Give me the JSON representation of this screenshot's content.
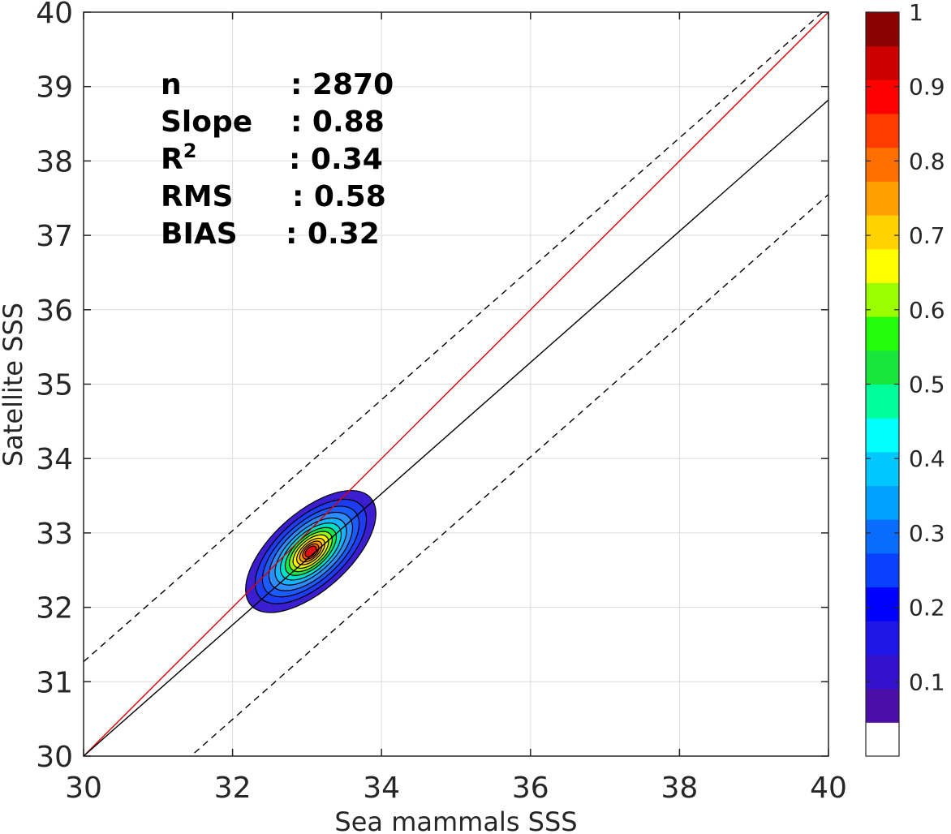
{
  "chart_data": {
    "type": "contour-scatter",
    "xlabel": "Sea mammals SSS",
    "ylabel": "Satellite SSS",
    "xlim": [
      30,
      40
    ],
    "ylim": [
      30,
      40
    ],
    "xticks": [
      "30",
      "32",
      "34",
      "36",
      "38",
      "40"
    ],
    "yticks": [
      "30",
      "31",
      "32",
      "33",
      "34",
      "35",
      "36",
      "37",
      "38",
      "39",
      "40"
    ],
    "grid": true,
    "stats": [
      {
        "label": "n",
        "value": ": 2870"
      },
      {
        "label": "Slope",
        "value": ": 0.88"
      },
      {
        "label": "R",
        "superscript": "2",
        "value": ": 0.34"
      },
      {
        "label": "RMS",
        "value": ": 0.58"
      },
      {
        "label": "BIAS",
        "value": ": 0.32"
      }
    ],
    "lines": {
      "one_to_one": {
        "color": "#dd0000",
        "points": [
          [
            30,
            30
          ],
          [
            40,
            40
          ]
        ]
      },
      "regression": {
        "color": "#000000",
        "slope": 0.88,
        "points": [
          [
            30,
            30
          ],
          [
            40,
            38.82
          ]
        ]
      },
      "upper_bound": {
        "color": "#000000",
        "dashed": true,
        "points": [
          [
            30,
            31.27
          ],
          [
            40,
            40.07
          ]
        ]
      },
      "lower_bound": {
        "color": "#000000",
        "dashed": true,
        "points": [
          [
            30,
            28.73
          ],
          [
            40,
            37.55
          ]
        ]
      }
    },
    "density": {
      "center": [
        33.05,
        32.75
      ],
      "rotation_deg": 42,
      "levels": [
        {
          "level": 0.1,
          "color": "#3a1ed0",
          "rx": 1.08,
          "ry": 0.52
        },
        {
          "level": 0.15,
          "color": "#1f3cf5",
          "rx": 0.92,
          "ry": 0.45
        },
        {
          "level": 0.2,
          "color": "#1a5cff",
          "rx": 0.8,
          "ry": 0.39
        },
        {
          "level": 0.25,
          "color": "#2f8cff",
          "rx": 0.69,
          "ry": 0.34
        },
        {
          "level": 0.3,
          "color": "#16b4ff",
          "rx": 0.59,
          "ry": 0.29
        },
        {
          "level": 0.4,
          "color": "#00e0c8",
          "rx": 0.5,
          "ry": 0.25
        },
        {
          "level": 0.5,
          "color": "#14e94a",
          "rx": 0.42,
          "ry": 0.21
        },
        {
          "level": 0.55,
          "color": "#9cf70a",
          "rx": 0.35,
          "ry": 0.18
        },
        {
          "level": 0.65,
          "color": "#fff200",
          "rx": 0.29,
          "ry": 0.15
        },
        {
          "level": 0.7,
          "color": "#ffcc00",
          "rx": 0.23,
          "ry": 0.12
        },
        {
          "level": 0.75,
          "color": "#ff9a00",
          "rx": 0.18,
          "ry": 0.095
        },
        {
          "level": 0.8,
          "color": "#ff5a00",
          "rx": 0.13,
          "ry": 0.075
        },
        {
          "level": 0.9,
          "color": "#e01010",
          "rx": 0.09,
          "ry": 0.055
        }
      ]
    },
    "colorbar": {
      "range": [
        0,
        1
      ],
      "ticks": [
        "0.1",
        "0.2",
        "0.3",
        "0.4",
        "0.5",
        "0.6",
        "0.7",
        "0.8",
        "0.9",
        "1"
      ],
      "colors": [
        "#ffffff",
        "#4b0fa8",
        "#3210cc",
        "#1e16e6",
        "#0000ff",
        "#0a40ff",
        "#0a6cff",
        "#00a0ff",
        "#00c8ff",
        "#00ffff",
        "#00ff9a",
        "#19e63c",
        "#23ff0a",
        "#9cff00",
        "#ffff00",
        "#ffd200",
        "#ffa000",
        "#ff6e00",
        "#ff3c00",
        "#ff0000",
        "#cc0000",
        "#8b0000"
      ]
    }
  }
}
